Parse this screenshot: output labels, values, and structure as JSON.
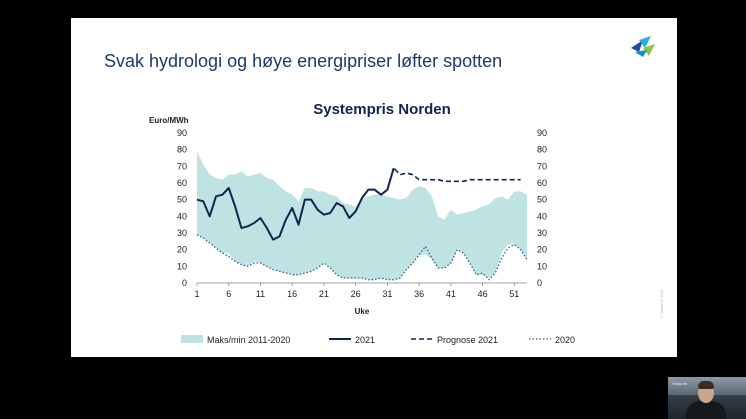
{
  "slide": {
    "title": "Svak hydrologi og høye energipriser løfter spotten",
    "copyright": "© Statkraft 2021"
  },
  "webcam": {
    "logo_text": "Statkraft"
  },
  "colors": {
    "band": "#bfe3e3",
    "line_2021": "#10254f",
    "prognose": "#10254f",
    "line_2020": "#2f5d8f",
    "title": "#1b3a6b"
  },
  "chart_data": {
    "type": "line",
    "title": "Systempris Norden",
    "ylabel": "Euro/MWh",
    "xlabel": "Uke",
    "ylim": [
      0,
      90
    ],
    "xlim": [
      1,
      53
    ],
    "y_ticks": [
      0,
      10,
      20,
      30,
      40,
      50,
      60,
      70,
      80,
      90
    ],
    "x_ticks": [
      1,
      6,
      11,
      16,
      21,
      26,
      31,
      36,
      41,
      46,
      51
    ],
    "band": {
      "name": "Maks/min 2011-2020",
      "x": [
        1,
        2,
        3,
        4,
        5,
        6,
        7,
        8,
        9,
        10,
        11,
        12,
        13,
        14,
        15,
        16,
        17,
        18,
        19,
        20,
        21,
        22,
        23,
        24,
        25,
        26,
        27,
        28,
        29,
        30,
        31,
        32,
        33,
        34,
        35,
        36,
        37,
        38,
        39,
        40,
        41,
        42,
        43,
        44,
        45,
        46,
        47,
        48,
        49,
        50,
        51,
        52,
        53
      ],
      "max": [
        79,
        71,
        65,
        63,
        62,
        65,
        65,
        67,
        64,
        65,
        66,
        63,
        62,
        58,
        55,
        53,
        49,
        57,
        57,
        55,
        55,
        53,
        52,
        48,
        47,
        46,
        50,
        52,
        53,
        53,
        52,
        51,
        50,
        51,
        56,
        58,
        57,
        52,
        40,
        38,
        44,
        41,
        42,
        43,
        44,
        46,
        47,
        51,
        52,
        50,
        55,
        55,
        53
      ],
      "min": [
        29,
        27,
        24,
        21,
        18,
        18,
        13,
        11,
        10,
        13,
        12,
        10,
        8,
        7,
        6,
        5,
        5,
        6,
        7,
        9,
        12,
        9,
        5,
        3,
        3,
        3,
        3,
        2,
        2,
        3,
        2,
        2,
        3,
        8,
        12,
        17,
        17,
        14,
        9,
        9,
        12,
        20,
        18,
        12,
        5,
        5,
        3,
        6,
        18,
        23,
        23,
        20,
        14
      ]
    },
    "series": [
      {
        "name": "2021",
        "x": [
          1,
          2,
          3,
          4,
          5,
          6,
          7,
          8,
          9,
          10,
          11,
          12,
          13,
          14,
          15,
          16,
          17,
          18,
          19,
          20,
          21,
          22,
          23,
          24,
          25,
          26,
          27,
          28,
          29,
          30,
          31,
          32
        ],
        "values": [
          50,
          49,
          40,
          52,
          53,
          57,
          46,
          33,
          34,
          36,
          39,
          33,
          26,
          28,
          38,
          45,
          35,
          50,
          50,
          44,
          41,
          42,
          48,
          46,
          39,
          43,
          51,
          56,
          56,
          53,
          56,
          69
        ]
      },
      {
        "name": "Prognose 2021",
        "style": "dashed",
        "x": [
          31,
          32,
          33,
          34,
          35,
          36,
          37,
          38,
          39,
          40,
          41,
          42,
          43,
          44,
          45,
          46,
          47,
          48,
          49,
          50,
          51,
          52
        ],
        "values": [
          56,
          69,
          65,
          66,
          65,
          62,
          62,
          62,
          62,
          61,
          61,
          61,
          61,
          62,
          62,
          62,
          62,
          62,
          62,
          62,
          62,
          62
        ]
      },
      {
        "name": "2020",
        "style": "dotted",
        "x": [
          1,
          2,
          3,
          4,
          5,
          6,
          7,
          8,
          9,
          10,
          11,
          12,
          13,
          14,
          15,
          16,
          17,
          18,
          19,
          20,
          21,
          22,
          23,
          24,
          25,
          26,
          27,
          28,
          29,
          30,
          31,
          32,
          33,
          34,
          35,
          36,
          37,
          38,
          39,
          40,
          41,
          42,
          43,
          44,
          45,
          46,
          47,
          48,
          49,
          50,
          51,
          52,
          53
        ],
        "values": [
          29,
          27,
          24,
          21,
          18,
          16,
          13,
          11,
          10,
          12,
          12,
          10,
          8,
          7,
          6,
          5,
          5,
          6,
          7,
          9,
          12,
          9,
          5,
          3,
          3,
          3,
          3,
          2,
          2,
          3,
          2,
          2,
          3,
          8,
          12,
          17,
          22,
          15,
          9,
          9,
          12,
          20,
          18,
          12,
          5,
          6,
          2,
          6,
          15,
          21,
          23,
          20,
          14
        ]
      }
    ],
    "legend_position": "bottom"
  }
}
